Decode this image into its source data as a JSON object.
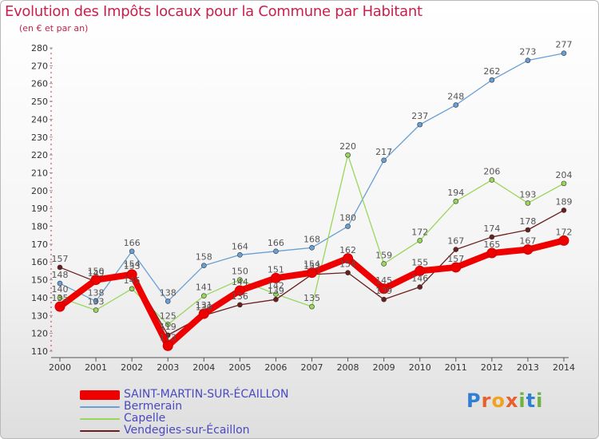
{
  "header": {
    "title": "Evolution des Impôts locaux pour la Commune par Habitant",
    "subtitle": "(en € et par an)"
  },
  "logo": {
    "text": "Proxiti"
  },
  "colors": {
    "axis": "#555555",
    "grid": "#dddddd",
    "label": "#333333"
  },
  "chart_data": {
    "type": "line",
    "title": "Evolution des Impôts locaux pour la Commune par Habitant",
    "subtitle": "(en € et par an)",
    "xlabel": "",
    "ylabel": "",
    "x": [
      "2000",
      "2001",
      "2002",
      "2003",
      "2004",
      "2005",
      "2006",
      "2007",
      "2008",
      "2009",
      "2010",
      "2011",
      "2012",
      "2013",
      "2014"
    ],
    "ylim": [
      110,
      280
    ],
    "yticks": [
      110,
      120,
      130,
      140,
      150,
      160,
      170,
      180,
      190,
      200,
      210,
      220,
      230,
      240,
      250,
      260,
      270,
      280
    ],
    "grid": false,
    "legend_position": "bottom-left",
    "series": [
      {
        "name": "SAINT-MARTIN-SUR-ÉCAILLON",
        "color": "#ee0000",
        "width": 8,
        "values": [
          135,
          150,
          153,
          113,
          131,
          144,
          151,
          154,
          162,
          145,
          155,
          157,
          165,
          167,
          172
        ],
        "labels": [
          "135",
          "150",
          "153",
          "113",
          "131",
          "144",
          "151",
          "154",
          "162",
          "145",
          "155",
          "157",
          "165",
          "167",
          "172"
        ]
      },
      {
        "name": "Bermerain",
        "color": "#6a9fd4",
        "width": 1.3,
        "values": [
          148,
          138,
          166,
          138,
          158,
          164,
          166,
          168,
          180,
          217,
          237,
          248,
          262,
          273,
          277
        ],
        "labels": [
          "148",
          "138",
          "166",
          "138",
          "158",
          "164",
          "166",
          "168",
          "180",
          "217",
          "237",
          "248",
          "262",
          "273",
          "277"
        ]
      },
      {
        "name": "Capelle",
        "color": "#99d65c",
        "width": 1.3,
        "values": [
          140,
          133,
          145,
          125,
          141,
          150,
          142,
          135,
          220,
          159,
          172,
          194,
          206,
          193,
          204
        ],
        "labels": [
          "140",
          "133",
          "145",
          "125",
          "141",
          "150",
          "142",
          "135",
          "220",
          "159",
          "172",
          "194",
          "206",
          "193",
          "204"
        ]
      },
      {
        "name": "Vendegies-sur-Écaillon",
        "color": "#6b1e1e",
        "width": 1.3,
        "values": [
          157,
          149,
          154,
          119,
          130,
          136,
          139,
          153,
          154,
          139,
          146,
          167,
          174,
          178,
          189
        ],
        "labels": [
          "157",
          "149",
          "154",
          "119",
          "130",
          "136",
          "139",
          "153",
          "154",
          "139",
          "146",
          "167",
          "174",
          "178",
          "189"
        ]
      }
    ]
  }
}
